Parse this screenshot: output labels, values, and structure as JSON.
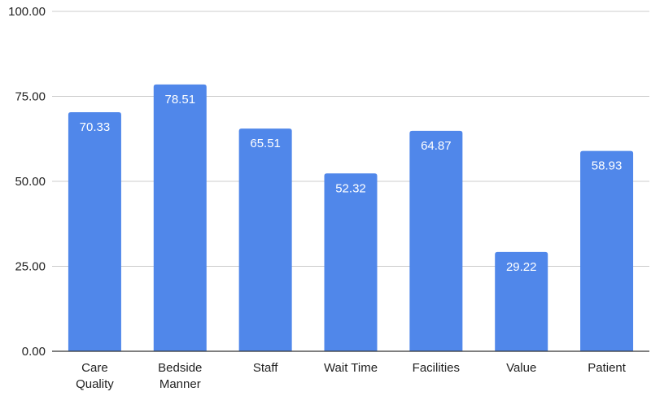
{
  "chart_data": {
    "type": "bar",
    "categories": [
      [
        "Care",
        "Quality"
      ],
      [
        "Bedside",
        "Manner"
      ],
      [
        "Staff"
      ],
      [
        "Wait Time"
      ],
      [
        "Facilities"
      ],
      [
        "Value"
      ],
      [
        "Patient"
      ]
    ],
    "values": [
      70.33,
      78.51,
      65.51,
      52.32,
      64.87,
      29.22,
      58.93
    ],
    "value_labels": [
      "70.33",
      "78.51",
      "65.51",
      "52.32",
      "64.87",
      "29.22",
      "58.93"
    ],
    "yticks": [
      0,
      25,
      50,
      75,
      100
    ],
    "ytick_labels": [
      "0.00",
      "25.00",
      "50.00",
      "75.00",
      "100.00"
    ],
    "ylim": [
      0,
      100
    ],
    "title": "",
    "xlabel": "",
    "ylabel": "",
    "grid": true,
    "legend": "none",
    "colors": {
      "bar": "#5087EA",
      "grid": "#CCCCCC",
      "baseline": "#333333",
      "text": "#222222",
      "value_text": "#FFFFFF"
    }
  }
}
